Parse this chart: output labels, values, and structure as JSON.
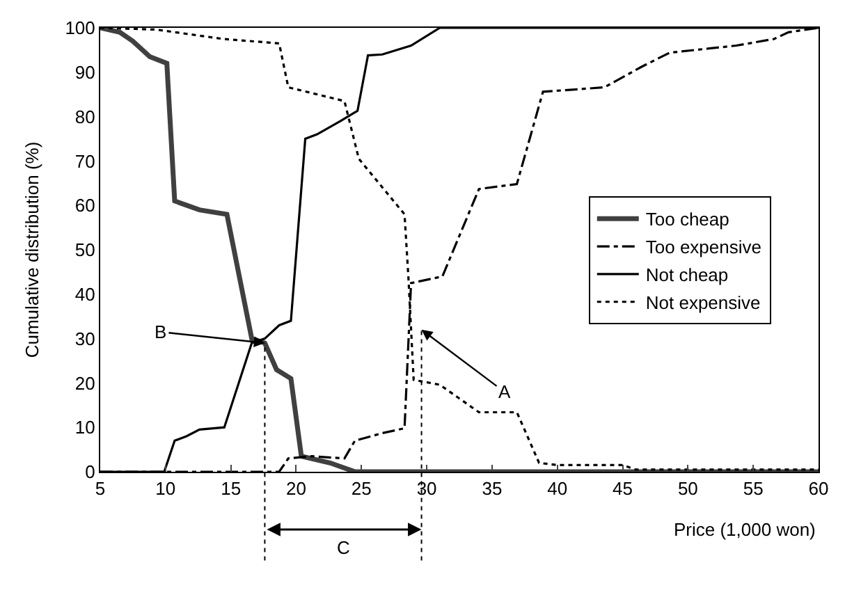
{
  "chart_data": {
    "type": "line",
    "xlabel": "Price (1,000 won)",
    "ylabel": "Cumulative distribution (%)",
    "xlim": [
      5,
      60
    ],
    "xticks": [
      5,
      10,
      15,
      20,
      25,
      30,
      35,
      40,
      45,
      50,
      55,
      60
    ],
    "ylim": [
      0,
      100
    ],
    "yticks": [
      0,
      10,
      20,
      30,
      40,
      50,
      60,
      70,
      80,
      90,
      100
    ],
    "legend": "right",
    "marker": "none",
    "series": [
      {
        "name": "Too cheap",
        "color": "#404040",
        "line_style": "solid",
        "x": [
          5,
          6.5,
          7.5,
          8.8,
          10.1,
          10.7,
          12.6,
          14.7,
          16.6,
          17.6,
          18.5,
          19.6,
          20.4,
          22.6,
          24.5,
          60
        ],
        "values": [
          100,
          99,
          97,
          93.5,
          92,
          61,
          59,
          58,
          30,
          29,
          23,
          21,
          3.5,
          2,
          0,
          0
        ]
      },
      {
        "name": "Too expensive",
        "color": "#000000",
        "line_style": "dashdot",
        "x": [
          5,
          18.7,
          19.4,
          21.2,
          23.7,
          24.5,
          26.6,
          28.3,
          28.8,
          31.2,
          34,
          36.9,
          38.9,
          43.6,
          46.5,
          48.6,
          53.7,
          56.6,
          57.7,
          60
        ],
        "values": [
          0,
          0,
          3,
          3.5,
          3,
          7,
          8.7,
          9.8,
          42.5,
          44,
          63.7,
          64.8,
          85.6,
          86.6,
          91.3,
          94.4,
          96,
          97.5,
          99,
          100
        ]
      },
      {
        "name": "Not cheap",
        "color": "#000000",
        "line_style": "solid",
        "x": [
          5,
          9.9,
          10.7,
          11.6,
          12.6,
          14.5,
          16.6,
          17.6,
          18.7,
          19.6,
          20.7,
          21.6,
          23.4,
          24.7,
          25.5,
          26.6,
          28.8,
          31,
          60
        ],
        "values": [
          0,
          0,
          7,
          8,
          9.5,
          10,
          29,
          30,
          33,
          34,
          75,
          76,
          79,
          81.3,
          93.8,
          94,
          96,
          100,
          100
        ]
      },
      {
        "name": "Not expensive",
        "color": "#000000",
        "line_style": "dotted",
        "x": [
          5,
          9.3,
          14.4,
          18.7,
          19.4,
          23.7,
          24.8,
          28.3,
          28.6,
          29,
          31,
          34,
          36.9,
          38.6,
          40,
          45,
          46,
          60
        ],
        "values": [
          100,
          99.6,
          97.5,
          96.5,
          86.6,
          83.5,
          70.5,
          58,
          43.6,
          20.7,
          19.6,
          13.4,
          13.4,
          2,
          1.5,
          1.5,
          0.5,
          0.5
        ]
      }
    ],
    "ref_lines": [
      {
        "axis": "x",
        "value": 17.6,
        "line_style": "dotted"
      },
      {
        "axis": "x",
        "value": 29.6,
        "line_style": "dotted"
      }
    ],
    "annotations": [
      {
        "text": "B",
        "x": 17.6,
        "y": 29
      },
      {
        "text": "A",
        "x": 29.6,
        "y": 32
      },
      "C"
    ]
  }
}
